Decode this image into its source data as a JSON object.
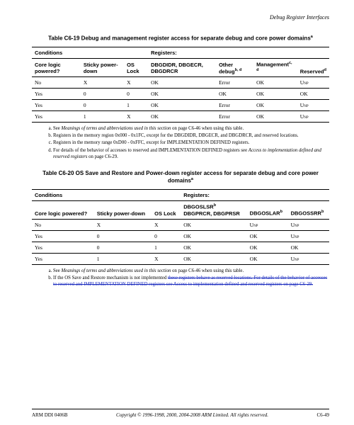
{
  "header": {
    "section": "Debug Register Interfaces"
  },
  "table1": {
    "title_prefix": "Table C6-19 Debug and management register access for separate debug and core power domains",
    "title_sup": "a",
    "grp_cond": "Conditions",
    "grp_reg": "Registers:",
    "cols": {
      "c1": "Core logic powered?",
      "c2": "Sticky power-down",
      "c3": "OS Lock",
      "c4": "DBGDIDR, DBGECR, DBGDRCR",
      "c5_a": "Other debug",
      "c5_sup": "b, d",
      "c6_a": "Management",
      "c6_sup": "c, d",
      "c7_a": "Reserved",
      "c7_sup": "d"
    },
    "rows": [
      [
        "No",
        "X",
        "X",
        "OK",
        "Error",
        "OK",
        "UNP"
      ],
      [
        "Yes",
        "0",
        "0",
        "OK",
        "OK",
        "OK",
        "OK"
      ],
      [
        "Yes",
        "0",
        "1",
        "OK",
        "Error",
        "OK",
        "UNP"
      ],
      [
        "Yes",
        "1",
        "X",
        "OK",
        "Error",
        "OK",
        "UNP"
      ]
    ],
    "fn": {
      "a1": "See ",
      "a2": "Meanings of terms and abbreviations used in this section",
      "a3": " on page C6-46 when using this table.",
      "b": "Registers in the memory region 0x000 - 0x1FC, except for the DBGDIDR, DBGECR, and DBGDRCR, and reserved locations.",
      "c": "Registers in the memory range 0xD00 - 0xFFC, except for IMPLEMENTATION DEFINED registers.",
      "d1": "For details of the behavior of accesses to reserved and IMPLEMENTATION DEFINED registers see ",
      "d2": "Access to implementation defined and reserved registers",
      "d3": " on page C6-29."
    }
  },
  "table2": {
    "title_prefix": "Table C6-20 OS Save and Restore and Power-down register access for separate debug and core power domains",
    "title_sup": "a",
    "grp_cond": "Conditions",
    "grp_reg": "Registers:",
    "cols": {
      "c1": "Core logic powered?",
      "c2": "Sticky power-down",
      "c3": "OS Lock",
      "c4": "DBGOSLSR",
      "c4s": "b",
      "c4b": "DBGPRCR, DBGPRSR",
      "c5": "DBGOSLAR",
      "c5s": "b",
      "c6": "DBGOSSRR",
      "c6s": "b"
    },
    "rows": [
      [
        "No",
        "X",
        "X",
        "OK",
        "UNP",
        "UNP"
      ],
      [
        "Yes",
        "0",
        "0",
        "OK",
        "OK",
        "UNP"
      ],
      [
        "Yes",
        "0",
        "1",
        "OK",
        "OK",
        "OK"
      ],
      [
        "Yes",
        "1",
        "X",
        "OK",
        "OK",
        "UNP"
      ]
    ],
    "fn": {
      "a1": "See ",
      "a2": "Meanings of terms and abbreviations used in this section",
      "a3": " on page C6-46 when using this table.",
      "b1": "If the OS Save and Restore mechanism is not implemented ",
      "b2": "these registers behave as reserved locations. For details of the behavior of accesses to reserved and IMPLEMENTATION DEFINED registers see Access to implementation defined and reserved registers on page C6-29."
    }
  },
  "footer": {
    "doc": "ARM DDI 0406B",
    "copy": "Copyright © 1996-1998, 2000, 2004-2008 ARM Limited. All rights reserved.",
    "page": "C6-49"
  }
}
